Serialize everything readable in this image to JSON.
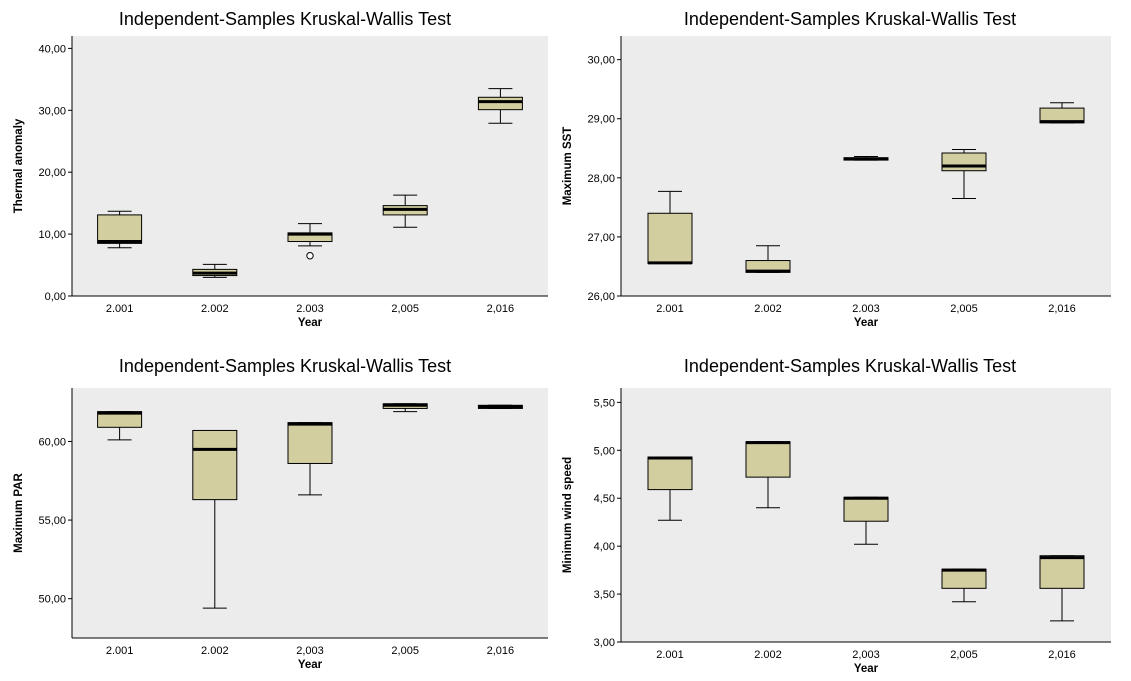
{
  "chart_data": [
    {
      "type": "box",
      "title": "Independent-Samples Kruskal-Wallis Test",
      "xlabel": "Year",
      "ylabel": "Thermal anomaly",
      "categories": [
        "2.001",
        "2.002",
        "2.003",
        "2,005",
        "2,016"
      ],
      "ylim": [
        0,
        42
      ],
      "yticks": [
        "0,00",
        "10,00",
        "20,00",
        "30,00",
        "40,00"
      ],
      "ytick_values": [
        0,
        10,
        20,
        30,
        40
      ],
      "boxes": [
        {
          "min": 7.8,
          "q1": 8.5,
          "median": 8.8,
          "q3": 13.1,
          "max": 13.7
        },
        {
          "min": 3.0,
          "q1": 3.3,
          "median": 3.7,
          "q3": 4.3,
          "max": 5.1
        },
        {
          "min": 8.1,
          "q1": 8.8,
          "median": 10.0,
          "q3": 10.2,
          "max": 11.7
        },
        {
          "min": 11.1,
          "q1": 13.1,
          "median": 14.0,
          "q3": 14.6,
          "max": 16.3
        },
        {
          "min": 27.9,
          "q1": 30.1,
          "median": 31.4,
          "q3": 32.1,
          "max": 33.5
        }
      ],
      "outliers": [
        {
          "category": "2.003",
          "value": 6.5
        }
      ],
      "box_color": "#d3ce9f",
      "background_color": "#ececec"
    },
    {
      "type": "box",
      "title": "Independent-Samples Kruskal-Wallis Test",
      "xlabel": "Year",
      "ylabel": "Maximum SST",
      "categories": [
        "2.001",
        "2.002",
        "2.003",
        "2,005",
        "2,016"
      ],
      "ylim": [
        26,
        30.4
      ],
      "yticks": [
        "26,00",
        "27,00",
        "28,00",
        "29,00",
        "30,00"
      ],
      "ytick_values": [
        26,
        27,
        28,
        29,
        30
      ],
      "boxes": [
        {
          "min": 26.55,
          "q1": 26.55,
          "median": 26.56,
          "q3": 27.4,
          "max": 27.77
        },
        {
          "min": 26.4,
          "q1": 26.4,
          "median": 26.42,
          "q3": 26.6,
          "max": 26.85
        },
        {
          "min": 28.3,
          "q1": 28.3,
          "median": 28.32,
          "q3": 28.34,
          "max": 28.36
        },
        {
          "min": 27.65,
          "q1": 28.12,
          "median": 28.2,
          "q3": 28.42,
          "max": 28.48
        },
        {
          "min": 28.93,
          "q1": 28.93,
          "median": 28.95,
          "q3": 29.18,
          "max": 29.27
        }
      ],
      "outliers": [],
      "box_color": "#d3ce9f",
      "background_color": "#ececec"
    },
    {
      "type": "box",
      "title": "Independent-Samples Kruskal-Wallis Test",
      "xlabel": "Year",
      "ylabel": "Maximum PAR",
      "categories": [
        "2.001",
        "2.002",
        "2,003",
        "2,005",
        "2,016"
      ],
      "ylim": [
        47.5,
        63.4
      ],
      "yticks": [
        "50,00",
        "55,00",
        "60,00"
      ],
      "ytick_values": [
        50,
        55,
        60
      ],
      "boxes": [
        {
          "min": 60.1,
          "q1": 60.9,
          "median": 61.8,
          "q3": 61.9,
          "max": 61.9
        },
        {
          "min": 49.4,
          "q1": 56.3,
          "median": 59.5,
          "q3": 60.7,
          "max": 60.7
        },
        {
          "min": 56.6,
          "q1": 58.6,
          "median": 61.1,
          "q3": 61.2,
          "max": 61.2
        },
        {
          "min": 61.9,
          "q1": 62.1,
          "median": 62.3,
          "q3": 62.4,
          "max": 62.4
        },
        {
          "min": 62.1,
          "q1": 62.1,
          "median": 62.2,
          "q3": 62.3,
          "max": 62.3
        }
      ],
      "outliers": [],
      "box_color": "#d3ce9f",
      "background_color": "#ececec"
    },
    {
      "type": "box",
      "title": "Independent-Samples Kruskal-Wallis Test",
      "xlabel": "Year",
      "ylabel": "Minimum wind speed",
      "categories": [
        "2.001",
        "2.002",
        "2,003",
        "2,005",
        "2,016"
      ],
      "ylim": [
        3,
        5.65
      ],
      "yticks": [
        "3,00",
        "3,50",
        "4,00",
        "4,50",
        "5,00",
        "5,50"
      ],
      "ytick_values": [
        3,
        3.5,
        4,
        4.5,
        5,
        5.5
      ],
      "boxes": [
        {
          "min": 4.27,
          "q1": 4.59,
          "median": 4.92,
          "q3": 4.93,
          "max": 4.93
        },
        {
          "min": 4.4,
          "q1": 4.72,
          "median": 5.08,
          "q3": 5.09,
          "max": 5.09
        },
        {
          "min": 4.02,
          "q1": 4.26,
          "median": 4.5,
          "q3": 4.51,
          "max": 4.51
        },
        {
          "min": 3.42,
          "q1": 3.56,
          "median": 3.75,
          "q3": 3.76,
          "max": 3.76
        },
        {
          "min": 3.22,
          "q1": 3.56,
          "median": 3.88,
          "q3": 3.9,
          "max": 3.9
        }
      ],
      "outliers": [],
      "box_color": "#d3ce9f",
      "background_color": "#ececec"
    }
  ]
}
